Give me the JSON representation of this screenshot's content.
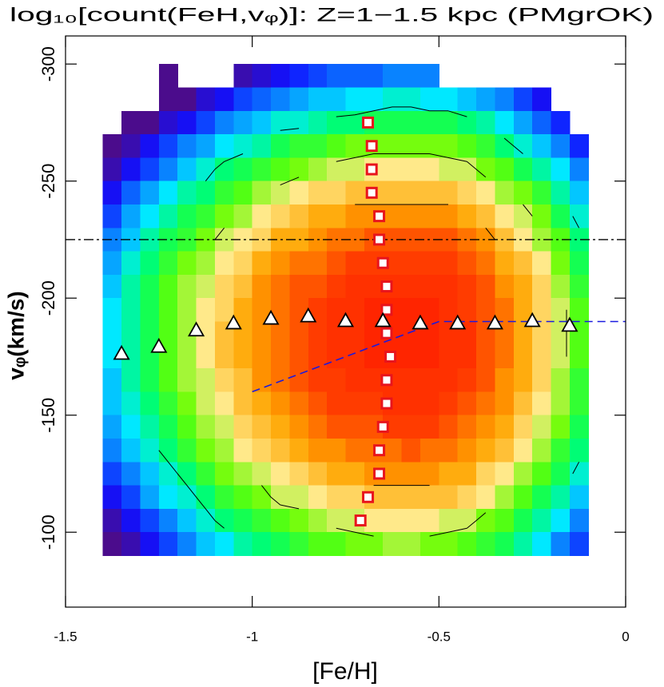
{
  "chart_data": {
    "type": "heatmap",
    "title": "log₁₀[count(FeH,vᵩ)]: Z=1−1.5 kpc (PMgrOK)",
    "x_label": "[Fe/H]",
    "y_label": "vᵩ(km/s)",
    "xlim": [
      -1.5,
      0
    ],
    "ylim": [
      -68,
      -312
    ],
    "xticks": [
      -1.5,
      -1,
      -0.5,
      0
    ],
    "yticks": [
      -300,
      -250,
      -200,
      -150,
      -100
    ],
    "xbins": [
      -1.4,
      -1.35,
      -1.3,
      -1.25,
      -1.2,
      -1.15,
      -1.1,
      -1.05,
      -1,
      -0.95,
      -0.9,
      -0.85,
      -0.8,
      -0.75,
      -0.7,
      -0.65,
      -0.6,
      -0.55,
      -0.5,
      -0.45,
      -0.4,
      -0.35,
      -0.3,
      -0.25,
      -0.2,
      -0.15,
      -0.1
    ],
    "ybins": [
      -300,
      -290,
      -280,
      -270,
      -260,
      -250,
      -240,
      -230,
      -220,
      -210,
      -200,
      -190,
      -180,
      -170,
      -160,
      -150,
      -140,
      -130,
      -120,
      -110,
      -100,
      -90
    ],
    "zlim": [
      0,
      3
    ],
    "colormap": [
      "#4b0c8c",
      "#1010ff",
      "#0a78ff",
      "#00e8ff",
      "#00ff66",
      "#66ff00",
      "#ffe98a",
      "#ffa500",
      "#ff4000",
      "#ff1a00"
    ],
    "z": [
      [
        null,
        null,
        null,
        0,
        null,
        null,
        null,
        0.1,
        0.2,
        0.3,
        0.4,
        0.5,
        0.6,
        0.6,
        0.6,
        0.7,
        0.7,
        0.7,
        null,
        null,
        null,
        null,
        null,
        null,
        null,
        null
      ],
      [
        null,
        null,
        null,
        0,
        0,
        0.2,
        0.3,
        0.5,
        0.6,
        0.7,
        0.8,
        0.9,
        0.9,
        1.0,
        1.0,
        1.1,
        1.1,
        1.0,
        1.0,
        0.9,
        0.8,
        0.7,
        0.5,
        0.3,
        null,
        null
      ],
      [
        null,
        0,
        0,
        0.2,
        0.3,
        0.5,
        0.7,
        0.8,
        0.9,
        1.1,
        1.1,
        1.2,
        1.3,
        1.3,
        1.4,
        1.4,
        1.4,
        1.4,
        1.4,
        1.3,
        1.2,
        1.0,
        0.8,
        0.6,
        0.4,
        null
      ],
      [
        0,
        0.1,
        0.3,
        0.5,
        0.7,
        0.8,
        1.0,
        1.1,
        1.2,
        1.4,
        1.5,
        1.5,
        1.6,
        1.7,
        1.7,
        1.7,
        1.7,
        1.7,
        1.7,
        1.6,
        1.5,
        1.3,
        1.1,
        0.9,
        0.7,
        0.4
      ],
      [
        0.1,
        0.3,
        0.5,
        0.7,
        0.9,
        1.1,
        1.3,
        1.4,
        1.5,
        1.6,
        1.7,
        1.8,
        1.9,
        1.9,
        2.0,
        2.0,
        2.0,
        2.0,
        1.9,
        1.9,
        1.7,
        1.6,
        1.4,
        1.2,
        1.0,
        0.7
      ],
      [
        0.3,
        0.6,
        0.8,
        1.0,
        1.2,
        1.3,
        1.5,
        1.6,
        1.8,
        1.9,
        2.0,
        2.1,
        2.1,
        2.2,
        2.2,
        2.2,
        2.2,
        2.2,
        2.2,
        2.1,
        2.0,
        1.8,
        1.7,
        1.5,
        1.2,
        0.9
      ],
      [
        0.5,
        0.8,
        1.0,
        1.2,
        1.4,
        1.5,
        1.7,
        1.8,
        2.0,
        2.1,
        2.2,
        2.3,
        2.3,
        2.4,
        2.4,
        2.4,
        2.4,
        2.4,
        2.4,
        2.3,
        2.2,
        2.0,
        1.9,
        1.7,
        1.4,
        1.1
      ],
      [
        0.7,
        0.9,
        1.2,
        1.4,
        1.5,
        1.7,
        1.9,
        2.0,
        2.1,
        2.3,
        2.3,
        2.4,
        2.5,
        2.5,
        2.6,
        2.6,
        2.6,
        2.6,
        2.6,
        2.5,
        2.4,
        2.2,
        2.0,
        1.8,
        1.6,
        1.3
      ],
      [
        0.8,
        1.1,
        1.3,
        1.5,
        1.7,
        1.8,
        2.0,
        2.1,
        2.3,
        2.4,
        2.5,
        2.5,
        2.6,
        2.7,
        2.7,
        2.7,
        2.7,
        2.7,
        2.7,
        2.6,
        2.5,
        2.3,
        2.2,
        2.0,
        1.7,
        1.4
      ],
      [
        0.9,
        1.2,
        1.4,
        1.6,
        1.8,
        1.9,
        2.1,
        2.2,
        2.4,
        2.5,
        2.6,
        2.6,
        2.7,
        2.8,
        2.8,
        2.8,
        2.8,
        2.8,
        2.8,
        2.7,
        2.6,
        2.4,
        2.3,
        2.1,
        1.8,
        1.5
      ],
      [
        1.0,
        1.2,
        1.4,
        1.6,
        1.8,
        2.0,
        2.1,
        2.3,
        2.4,
        2.5,
        2.6,
        2.7,
        2.8,
        2.8,
        2.9,
        2.9,
        2.9,
        2.9,
        2.8,
        2.7,
        2.6,
        2.5,
        2.3,
        2.1,
        1.9,
        1.6
      ],
      [
        1.0,
        1.2,
        1.4,
        1.6,
        1.8,
        2.0,
        2.2,
        2.3,
        2.4,
        2.5,
        2.6,
        2.7,
        2.8,
        2.8,
        2.9,
        2.9,
        2.9,
        2.9,
        2.8,
        2.8,
        2.6,
        2.5,
        2.3,
        2.1,
        1.9,
        1.6
      ],
      [
        1.0,
        1.2,
        1.4,
        1.6,
        1.8,
        2.0,
        2.2,
        2.3,
        2.4,
        2.5,
        2.6,
        2.7,
        2.8,
        2.8,
        2.9,
        2.9,
        2.9,
        2.9,
        2.8,
        2.8,
        2.6,
        2.5,
        2.3,
        2.1,
        1.9,
        1.6
      ],
      [
        0.9,
        1.2,
        1.4,
        1.6,
        1.8,
        1.9,
        2.1,
        2.2,
        2.4,
        2.5,
        2.6,
        2.7,
        2.7,
        2.8,
        2.8,
        2.8,
        2.8,
        2.8,
        2.8,
        2.7,
        2.6,
        2.4,
        2.3,
        2.1,
        1.8,
        1.5
      ],
      [
        0.9,
        1.1,
        1.3,
        1.5,
        1.7,
        1.9,
        2.0,
        2.2,
        2.3,
        2.4,
        2.5,
        2.6,
        2.7,
        2.7,
        2.7,
        2.8,
        2.8,
        2.8,
        2.7,
        2.6,
        2.5,
        2.4,
        2.2,
        2.0,
        1.8,
        1.5
      ],
      [
        0.8,
        1.0,
        1.2,
        1.4,
        1.6,
        1.8,
        1.9,
        2.1,
        2.2,
        2.3,
        2.4,
        2.5,
        2.6,
        2.6,
        2.6,
        2.7,
        2.7,
        2.7,
        2.6,
        2.5,
        2.4,
        2.3,
        2.1,
        1.9,
        1.7,
        1.4
      ],
      [
        0.7,
        0.9,
        1.1,
        1.3,
        1.5,
        1.7,
        1.8,
        2.0,
        2.1,
        2.2,
        2.3,
        2.4,
        2.4,
        2.5,
        2.5,
        2.5,
        2.6,
        2.5,
        2.5,
        2.4,
        2.3,
        2.2,
        2.0,
        1.8,
        1.5,
        1.3
      ],
      [
        0.5,
        0.7,
        0.9,
        1.1,
        1.3,
        1.5,
        1.7,
        1.8,
        1.9,
        2.0,
        2.1,
        2.2,
        2.3,
        2.3,
        2.4,
        2.4,
        2.4,
        2.4,
        2.3,
        2.3,
        2.1,
        2.0,
        1.8,
        1.6,
        1.4,
        1.1
      ],
      [
        0.3,
        0.5,
        0.8,
        1.0,
        1.1,
        1.3,
        1.5,
        1.6,
        1.7,
        1.9,
        1.9,
        2.0,
        2.1,
        2.1,
        2.2,
        2.2,
        2.2,
        2.2,
        2.2,
        2.1,
        2.0,
        1.8,
        1.6,
        1.4,
        1.2,
        0.9
      ],
      [
        0.1,
        0.3,
        0.5,
        0.7,
        0.9,
        1.1,
        1.3,
        1.4,
        1.5,
        1.6,
        1.7,
        1.8,
        1.9,
        1.9,
        2.0,
        2.0,
        2.0,
        2.0,
        1.9,
        1.9,
        1.7,
        1.6,
        1.4,
        1.2,
        1.0,
        0.7
      ],
      [
        0,
        0.1,
        0.3,
        0.5,
        0.7,
        0.9,
        1.0,
        1.2,
        1.3,
        1.4,
        1.5,
        1.6,
        1.6,
        1.7,
        1.7,
        1.8,
        1.8,
        1.7,
        1.7,
        1.6,
        1.5,
        1.4,
        1.2,
        1.0,
        0.7,
        0.5
      ]
    ],
    "contour_levels": [
      1.2,
      1.8,
      2.3,
      2.6,
      2.8
    ],
    "contour_color": "#000000",
    "hline": {
      "y": -225,
      "color": "#000000",
      "dash": "dashdot"
    },
    "lines": [
      {
        "x": [
          -1,
          -0.5,
          0
        ],
        "y": [
          -160,
          -190,
          -190
        ],
        "color": "#1a1adf",
        "dash": "dashed"
      }
    ],
    "markers": [
      {
        "shape": "square",
        "color": "#e8141c",
        "fill": "#ffffff",
        "x": [
          -0.69,
          -0.68,
          -0.68,
          -0.68,
          -0.66,
          -0.66,
          -0.65,
          -0.64,
          -0.64,
          -0.64,
          -0.63,
          -0.64,
          -0.64,
          -0.65,
          -0.66,
          -0.66,
          -0.69,
          -0.71
        ],
        "y": [
          -275,
          -265,
          -255,
          -245,
          -235,
          -225,
          -215,
          -205,
          -195,
          -185,
          -175,
          -165,
          -155,
          -145,
          -135,
          -125,
          -115,
          -105
        ]
      },
      {
        "shape": "triangle",
        "color": "#000000",
        "fill": "#ffffff",
        "x": [
          -1.35,
          -1.25,
          -1.15,
          -1.05,
          -0.95,
          -0.85,
          -0.75,
          -0.65,
          -0.55,
          -0.45,
          -0.35,
          -0.25,
          -0.15
        ],
        "y": [
          -176,
          -179,
          -186,
          -189,
          -191,
          -192,
          -190,
          -190,
          -189,
          -189,
          -189,
          -190,
          -188
        ]
      }
    ]
  }
}
